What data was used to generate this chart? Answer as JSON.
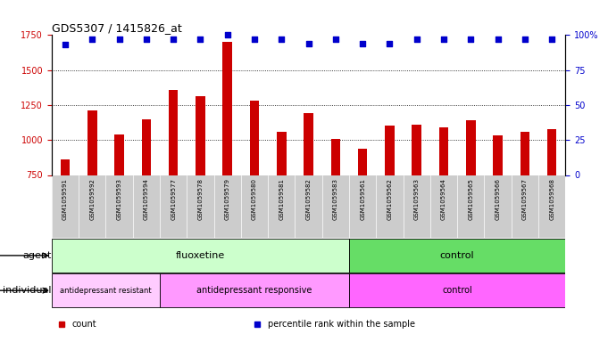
{
  "title": "GDS5307 / 1415826_at",
  "samples": [
    "GSM1059591",
    "GSM1059592",
    "GSM1059593",
    "GSM1059594",
    "GSM1059577",
    "GSM1059578",
    "GSM1059579",
    "GSM1059580",
    "GSM1059581",
    "GSM1059582",
    "GSM1059583",
    "GSM1059561",
    "GSM1059562",
    "GSM1059563",
    "GSM1059564",
    "GSM1059565",
    "GSM1059566",
    "GSM1059567",
    "GSM1059568"
  ],
  "counts": [
    860,
    1210,
    1040,
    1150,
    1360,
    1310,
    1700,
    1280,
    1060,
    1190,
    1005,
    940,
    1100,
    1110,
    1090,
    1140,
    1030,
    1060,
    1080
  ],
  "percentiles": [
    93,
    97,
    97,
    97,
    97,
    97,
    100,
    97,
    97,
    94,
    97,
    94,
    94,
    97,
    97,
    97,
    97,
    97,
    97
  ],
  "bar_color": "#cc0000",
  "dot_color": "#0000cc",
  "ylim_left": [
    750,
    1750
  ],
  "ylim_right": [
    0,
    100
  ],
  "yticks_left": [
    750,
    1000,
    1250,
    1500,
    1750
  ],
  "yticks_right": [
    0,
    25,
    50,
    75,
    100
  ],
  "grid_values": [
    1000,
    1250,
    1500
  ],
  "agent_groups": [
    {
      "label": "fluoxetine",
      "start": 0,
      "end": 11,
      "color": "#ccffcc"
    },
    {
      "label": "control",
      "start": 11,
      "end": 19,
      "color": "#66dd66"
    }
  ],
  "individual_groups": [
    {
      "label": "antidepressant resistant",
      "start": 0,
      "end": 4,
      "color": "#ffccff"
    },
    {
      "label": "antidepressant responsive",
      "start": 4,
      "end": 11,
      "color": "#ff99ff"
    },
    {
      "label": "control",
      "start": 11,
      "end": 19,
      "color": "#ff66ff"
    }
  ],
  "legend_items": [
    {
      "label": "count",
      "color": "#cc0000",
      "marker": "s"
    },
    {
      "label": "percentile rank within the sample",
      "color": "#0000cc",
      "marker": "s"
    }
  ],
  "bg_color": "#ffffff",
  "tick_bg_color": "#cccccc"
}
